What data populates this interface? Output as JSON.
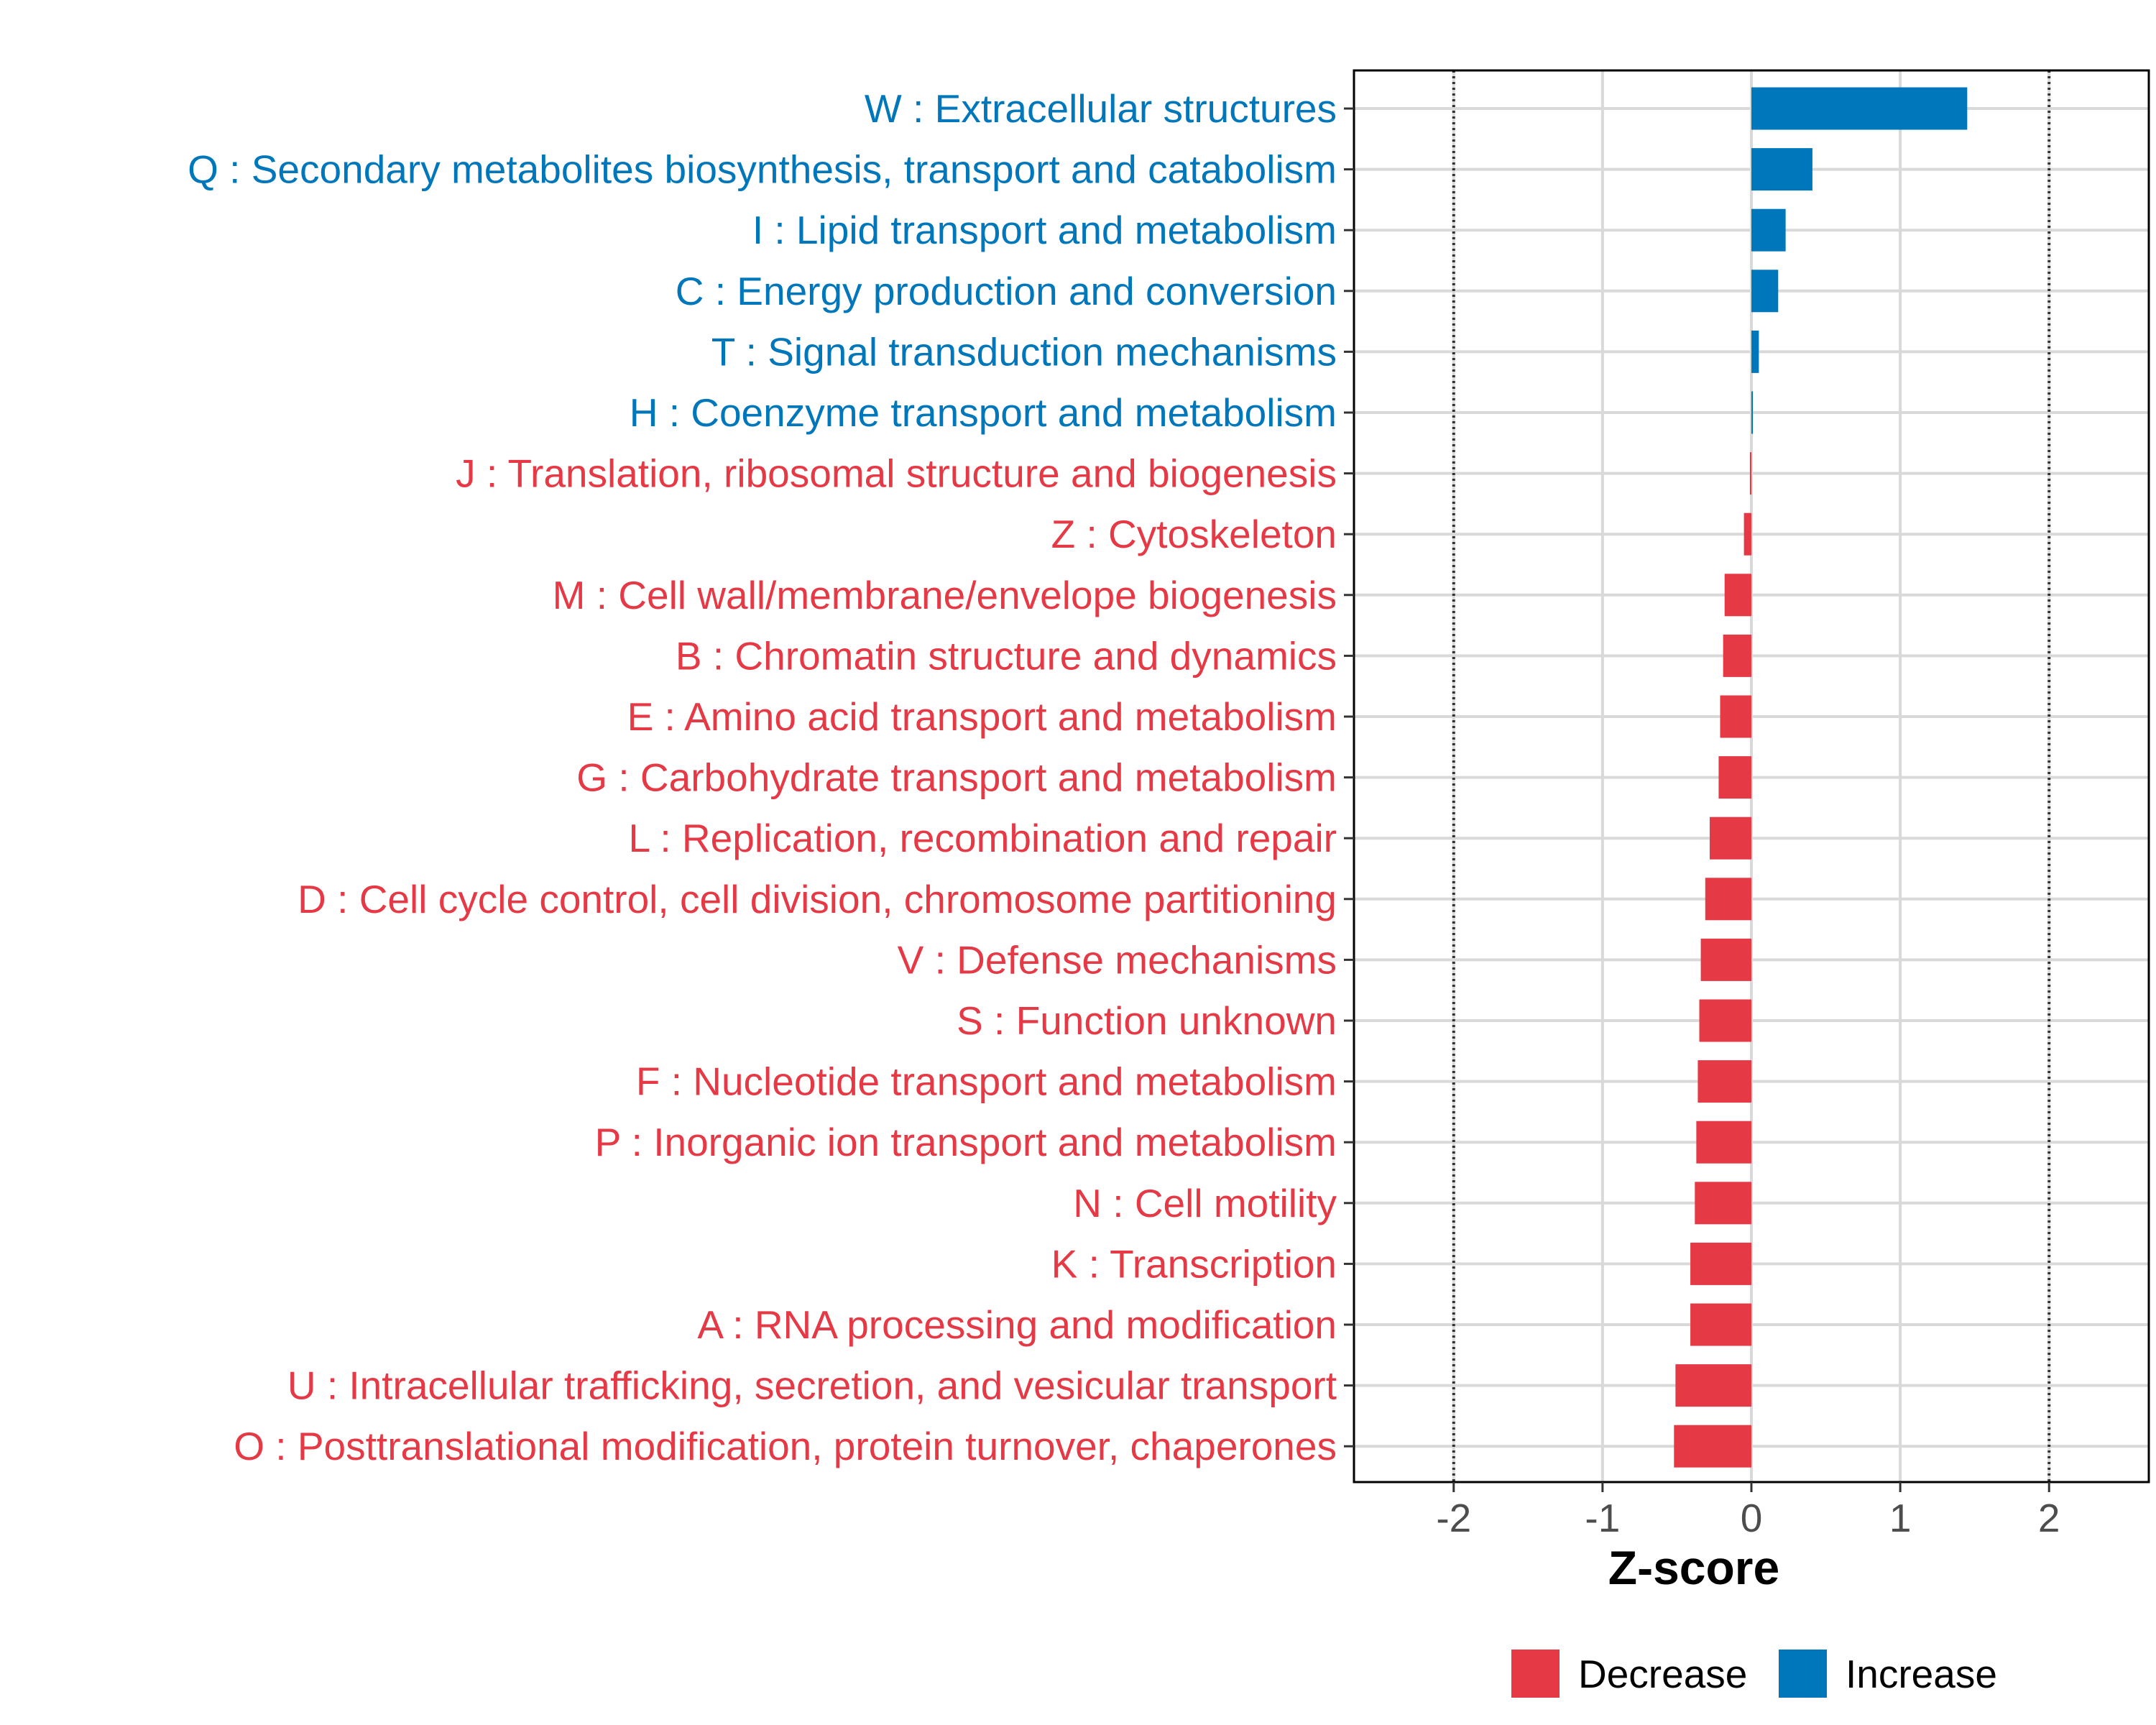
{
  "chart_data": {
    "type": "bar",
    "orientation": "horizontal",
    "xlabel": "Z-score",
    "xlim": [
      -2.67,
      2.67
    ],
    "x_ticks": [
      -2,
      -1,
      0,
      1,
      2
    ],
    "x_tick_labels": [
      "-2",
      "-1",
      "0",
      "1",
      "2"
    ],
    "reference_lines": [
      -2,
      2
    ],
    "grid": true,
    "legend_position": "bottom",
    "colors": {
      "Decrease": "#e63946",
      "Increase": "#0077bb"
    },
    "legend": [
      {
        "name": "Decrease",
        "color": "#e63946"
      },
      {
        "name": "Increase",
        "color": "#0077bb"
      }
    ],
    "categories": [
      "W : Extracellular structures",
      "Q : Secondary metabolites biosynthesis, transport and catabolism",
      "I : Lipid transport and metabolism",
      "C : Energy production and conversion",
      "T : Signal transduction mechanisms",
      "H : Coenzyme transport and metabolism",
      "J : Translation, ribosomal structure and biogenesis",
      "Z : Cytoskeleton",
      "M : Cell wall/membrane/envelope biogenesis",
      "B : Chromatin structure and dynamics",
      "E : Amino acid transport and metabolism",
      "G : Carbohydrate transport and metabolism",
      "L : Replication, recombination and repair",
      "D : Cell cycle control, cell division, chromosome partitioning",
      "V : Defense mechanisms",
      "S : Function unknown",
      "F : Nucleotide transport and metabolism",
      "P : Inorganic ion transport and metabolism",
      "N : Cell motility",
      "K : Transcription",
      "A : RNA processing and modification",
      "U : Intracellular trafficking, secretion, and vesicular transport",
      "O : Posttranslational modification, protein turnover, chaperones"
    ],
    "values": [
      1.45,
      0.41,
      0.23,
      0.18,
      0.05,
      0.01,
      -0.01,
      -0.05,
      -0.18,
      -0.19,
      -0.21,
      -0.22,
      -0.28,
      -0.31,
      -0.34,
      -0.35,
      -0.36,
      -0.37,
      -0.38,
      -0.41,
      -0.41,
      -0.51,
      -0.52
    ],
    "direction": [
      "Increase",
      "Increase",
      "Increase",
      "Increase",
      "Increase",
      "Increase",
      "Decrease",
      "Decrease",
      "Decrease",
      "Decrease",
      "Decrease",
      "Decrease",
      "Decrease",
      "Decrease",
      "Decrease",
      "Decrease",
      "Decrease",
      "Decrease",
      "Decrease",
      "Decrease",
      "Decrease",
      "Decrease",
      "Decrease"
    ]
  }
}
